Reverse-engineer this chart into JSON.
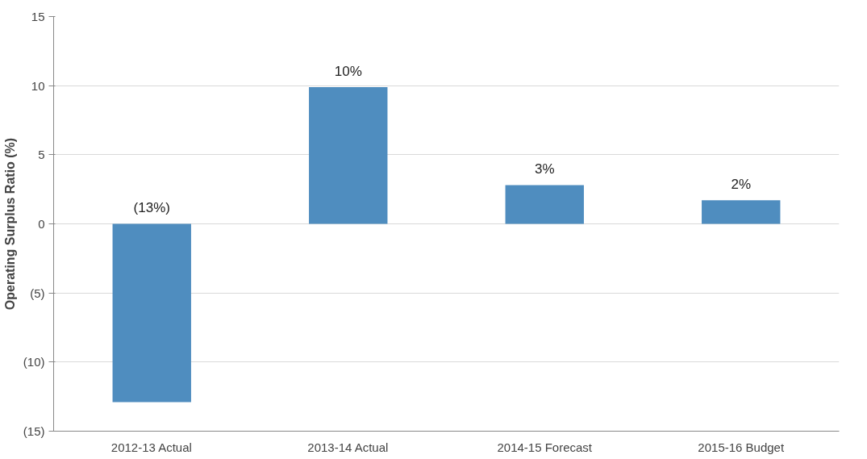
{
  "chart_data": {
    "type": "bar",
    "ylabel": "Operating Surplus Ratio (%)",
    "categories": [
      "2012-13 Actual",
      "2013-14 Actual",
      "2014-15 Forecast",
      "2015-16 Budget"
    ],
    "values": [
      -12.9,
      9.9,
      2.8,
      1.7
    ],
    "value_labels": [
      "(13%)",
      "10%",
      "3%",
      "2%"
    ],
    "color": "#4f8dbf",
    "ylim": [
      -15,
      15
    ],
    "yticks": [
      {
        "value": -15,
        "label": "(15)"
      },
      {
        "value": -10,
        "label": "(10)"
      },
      {
        "value": -5,
        "label": "(5)"
      },
      0,
      5,
      10,
      15
    ],
    "grid": "y"
  }
}
